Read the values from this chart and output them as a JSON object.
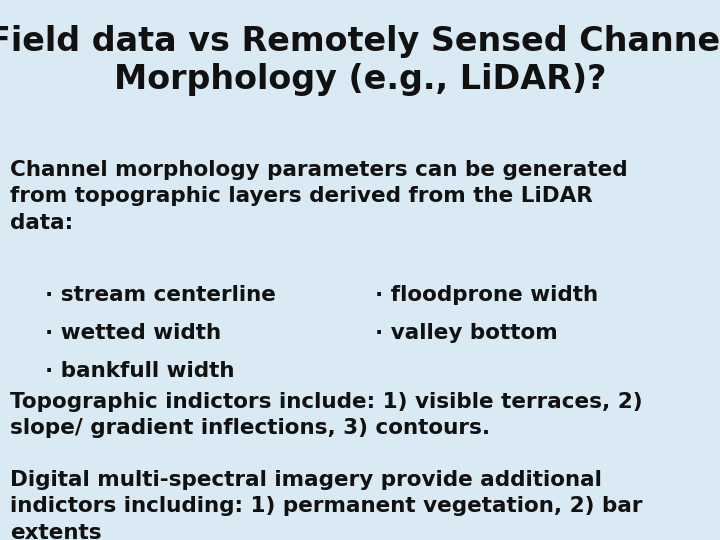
{
  "title": "Field data vs Remotely Sensed Channel\nMorphology (e.g., LiDAR)?",
  "background_color": "#daeaf5",
  "text_color": "#111111",
  "title_fontsize": 24,
  "body_fontsize": 15.5,
  "bullet_fontsize": 15.5,
  "font_family": "Comic Sans MS",
  "intro_text": "Channel morphology parameters can be generated\nfrom topographic layers derived from the LiDAR\ndata:",
  "bullets_left": [
    "· stream centerline",
    "· wetted width",
    "· bankfull width"
  ],
  "bullets_right": [
    "· floodprone width",
    "· valley bottom"
  ],
  "paragraph1": "Topographic indictors include: 1) visible terraces, 2)\nslope/ gradient inflections, 3) contours.",
  "paragraph2": "Digital multi-spectral imagery provide additional\nindictors including: 1) permanent vegetation, 2) bar\nextents"
}
